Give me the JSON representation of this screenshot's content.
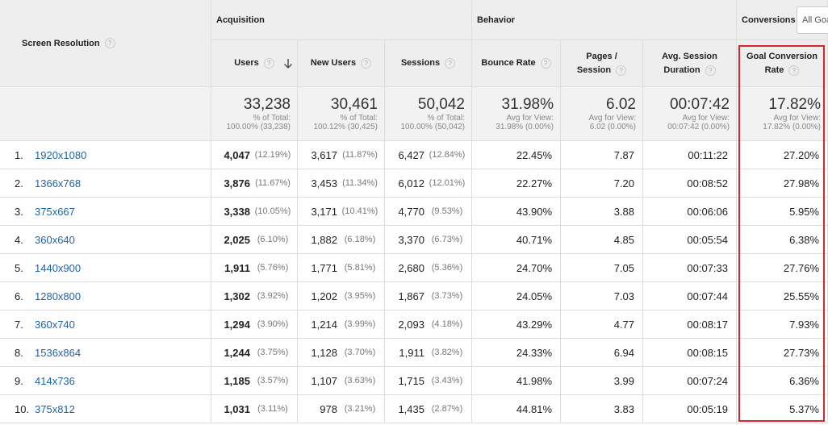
{
  "header": {
    "dimension": "Screen Resolution",
    "help": "?",
    "groups": [
      "Acquisition",
      "Behavior",
      "Conversions"
    ],
    "conversion_select": "All Goa",
    "columns": [
      "Users",
      "New Users",
      "Sessions",
      "Bounce Rate",
      "Pages / Session",
      "Avg. Session Duration",
      "Goal Conversion Rate"
    ]
  },
  "totals": [
    {
      "value": "33,238",
      "note": "% of Total:",
      "detail": "100.00% (33,238)"
    },
    {
      "value": "30,461",
      "note": "% of Total:",
      "detail": "100.12% (30,425)"
    },
    {
      "value": "50,042",
      "note": "% of Total:",
      "detail": "100.00% (50,042)"
    },
    {
      "value": "31.98%",
      "note": "Avg for View:",
      "detail": "31.98% (0.00%)"
    },
    {
      "value": "6.02",
      "note": "Avg for View:",
      "detail": "6.02 (0.00%)"
    },
    {
      "value": "00:07:42",
      "note": "Avg for View:",
      "detail": "00:07:42 (0.00%)"
    },
    {
      "value": "17.82%",
      "note": "Avg for View:",
      "detail": "17.82% (0.00%)"
    }
  ],
  "rows": [
    [
      "1.",
      "1920x1080",
      "4,047",
      "(12.19%)",
      "3,617",
      "(11.87%)",
      "6,427",
      "(12.84%)",
      "22.45%",
      "7.87",
      "00:11:22",
      "27.20%"
    ],
    [
      "2.",
      "1366x768",
      "3,876",
      "(11.67%)",
      "3,453",
      "(11.34%)",
      "6,012",
      "(12.01%)",
      "22.27%",
      "7.20",
      "00:08:52",
      "27.98%"
    ],
    [
      "3.",
      "375x667",
      "3,338",
      "(10.05%)",
      "3,171",
      "(10.41%)",
      "4,770",
      "(9.53%)",
      "43.90%",
      "3.88",
      "00:06:06",
      "5.95%"
    ],
    [
      "4.",
      "360x640",
      "2,025",
      "(6.10%)",
      "1,882",
      "(6.18%)",
      "3,370",
      "(6.73%)",
      "40.71%",
      "4.85",
      "00:05:54",
      "6.38%"
    ],
    [
      "5.",
      "1440x900",
      "1,911",
      "(5.76%)",
      "1,771",
      "(5.81%)",
      "2,680",
      "(5.36%)",
      "24.70%",
      "7.05",
      "00:07:33",
      "27.76%"
    ],
    [
      "6.",
      "1280x800",
      "1,302",
      "(3.92%)",
      "1,202",
      "(3.95%)",
      "1,867",
      "(3.73%)",
      "24.05%",
      "7.03",
      "00:07:44",
      "25.55%"
    ],
    [
      "7.",
      "360x740",
      "1,294",
      "(3.90%)",
      "1,214",
      "(3.99%)",
      "2,093",
      "(4.18%)",
      "43.29%",
      "4.77",
      "00:08:17",
      "7.93%"
    ],
    [
      "8.",
      "1536x864",
      "1,244",
      "(3.75%)",
      "1,128",
      "(3.70%)",
      "1,911",
      "(3.82%)",
      "24.33%",
      "6.94",
      "00:08:15",
      "27.73%"
    ],
    [
      "9.",
      "414x736",
      "1,185",
      "(3.57%)",
      "1,107",
      "(3.63%)",
      "1,715",
      "(3.43%)",
      "41.98%",
      "3.99",
      "00:07:24",
      "6.36%"
    ],
    [
      "10.",
      "375x812",
      "1,031",
      "(3.11%)",
      "978",
      "(3.21%)",
      "1,435",
      "(2.87%)",
      "44.81%",
      "3.83",
      "00:05:19",
      "5.37%"
    ]
  ]
}
